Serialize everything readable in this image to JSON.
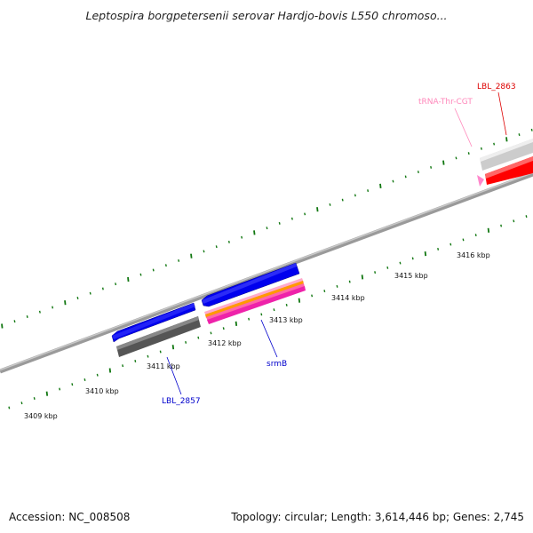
{
  "title": "Leptospira borgpetersenii serovar Hardjo-bovis L550 chromoso...",
  "footer": {
    "accession": "Accession: NC_008508",
    "summary": "Topology: circular; Length: 3,614,446 bp; Genes: 2,745"
  },
  "ticks": [
    "3409 kbp",
    "3410 kbp",
    "3411 kbp",
    "3412 kbp",
    "3413 kbp",
    "3414 kbp",
    "3415 kbp",
    "3416 kbp"
  ],
  "features": [
    {
      "label": "LBL_2857",
      "color": "#0000cc"
    },
    {
      "label": "srmB",
      "color": "#0000cc"
    },
    {
      "label": "tRNA-Thr-CGT",
      "color": "#ff88bb"
    },
    {
      "label": "LBL_2863",
      "color": "#dd0000"
    }
  ],
  "colors": {
    "backbone": "#888888",
    "ticks": "#117711",
    "cds_forward": "#0000ee",
    "cds_reverse": "#555555",
    "rna": "#ff2288",
    "highlight": "#ff0000"
  }
}
